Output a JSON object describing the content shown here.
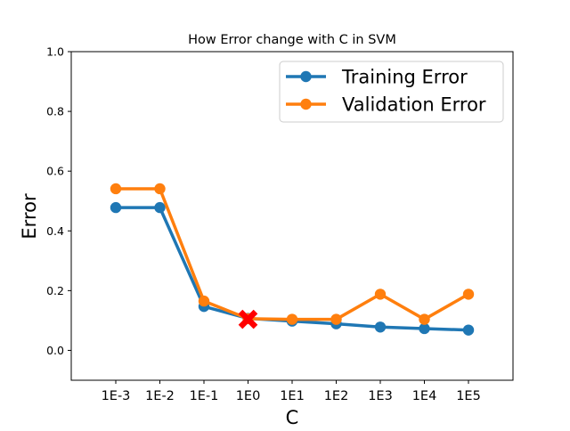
{
  "chart_data": {
    "type": "line",
    "title": "How Error change with C in SVM",
    "xlabel": "C",
    "ylabel": "Error",
    "categories": [
      "1E-3",
      "1E-2",
      "1E-1",
      "1E0",
      "1E1",
      "1E2",
      "1E3",
      "1E4",
      "1E5"
    ],
    "ylim": [
      -0.1,
      1.0
    ],
    "yticks": [
      "0.0",
      "0.2",
      "0.4",
      "0.6",
      "0.8",
      "1.0"
    ],
    "ytick_values": [
      0.0,
      0.2,
      0.4,
      0.6,
      0.8,
      1.0
    ],
    "grid": false,
    "legend_position": "top-right",
    "series": [
      {
        "name": "Training Error",
        "color": "#1f77b4",
        "values": [
          0.478,
          0.478,
          0.147,
          0.107,
          0.098,
          0.089,
          0.078,
          0.073,
          0.068
        ]
      },
      {
        "name": "Validation Error",
        "color": "#ff7f0e",
        "values": [
          0.541,
          0.541,
          0.165,
          0.106,
          0.104,
          0.104,
          0.188,
          0.104,
          0.188
        ]
      }
    ],
    "annotations": [
      {
        "type": "marker",
        "shape": "x",
        "color": "#ff0000",
        "category": "1E0",
        "value": 0.104
      }
    ]
  }
}
